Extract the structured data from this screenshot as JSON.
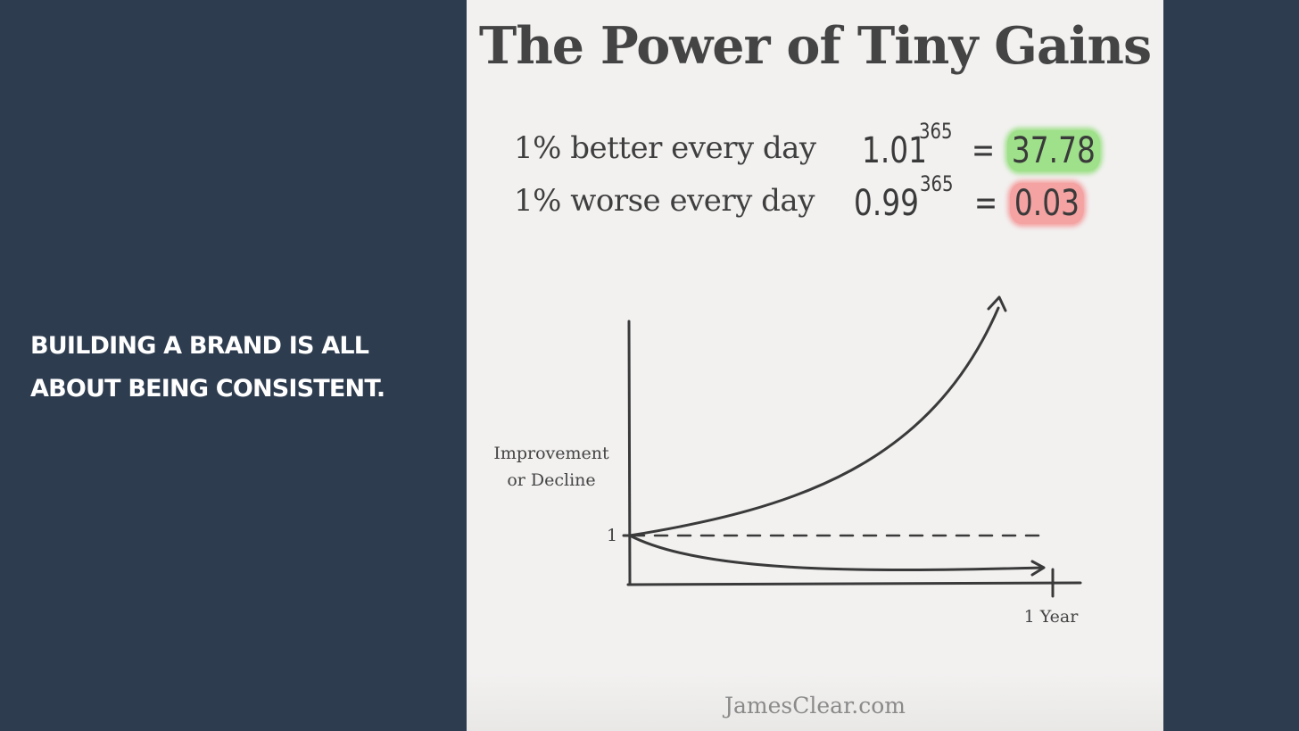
{
  "caption": {
    "line1": "BUILDING A BRAND IS ALL",
    "line2": "ABOUT BEING CONSISTENT."
  },
  "slide": {
    "title": "The Power of Tiny Gains",
    "better": {
      "label": "1% better every day",
      "base": "1.01",
      "exponent": "365",
      "equals": "=",
      "result": "37.78",
      "highlight": "#9fe08a"
    },
    "worse": {
      "label": "1% worse every day",
      "base": "0.99",
      "exponent": "365",
      "equals": "=",
      "result": "0.03",
      "highlight": "#f4a2a2"
    },
    "graph": {
      "y_label_line1": "Improvement",
      "y_label_line2": "or Decline",
      "y_tick": "1",
      "x_tick": "1 Year"
    },
    "footer": "JamesClear.com"
  },
  "colors": {
    "background": "#2d3c4f",
    "slide_background": "#f2f1f0",
    "ink": "#3a3a3a"
  }
}
